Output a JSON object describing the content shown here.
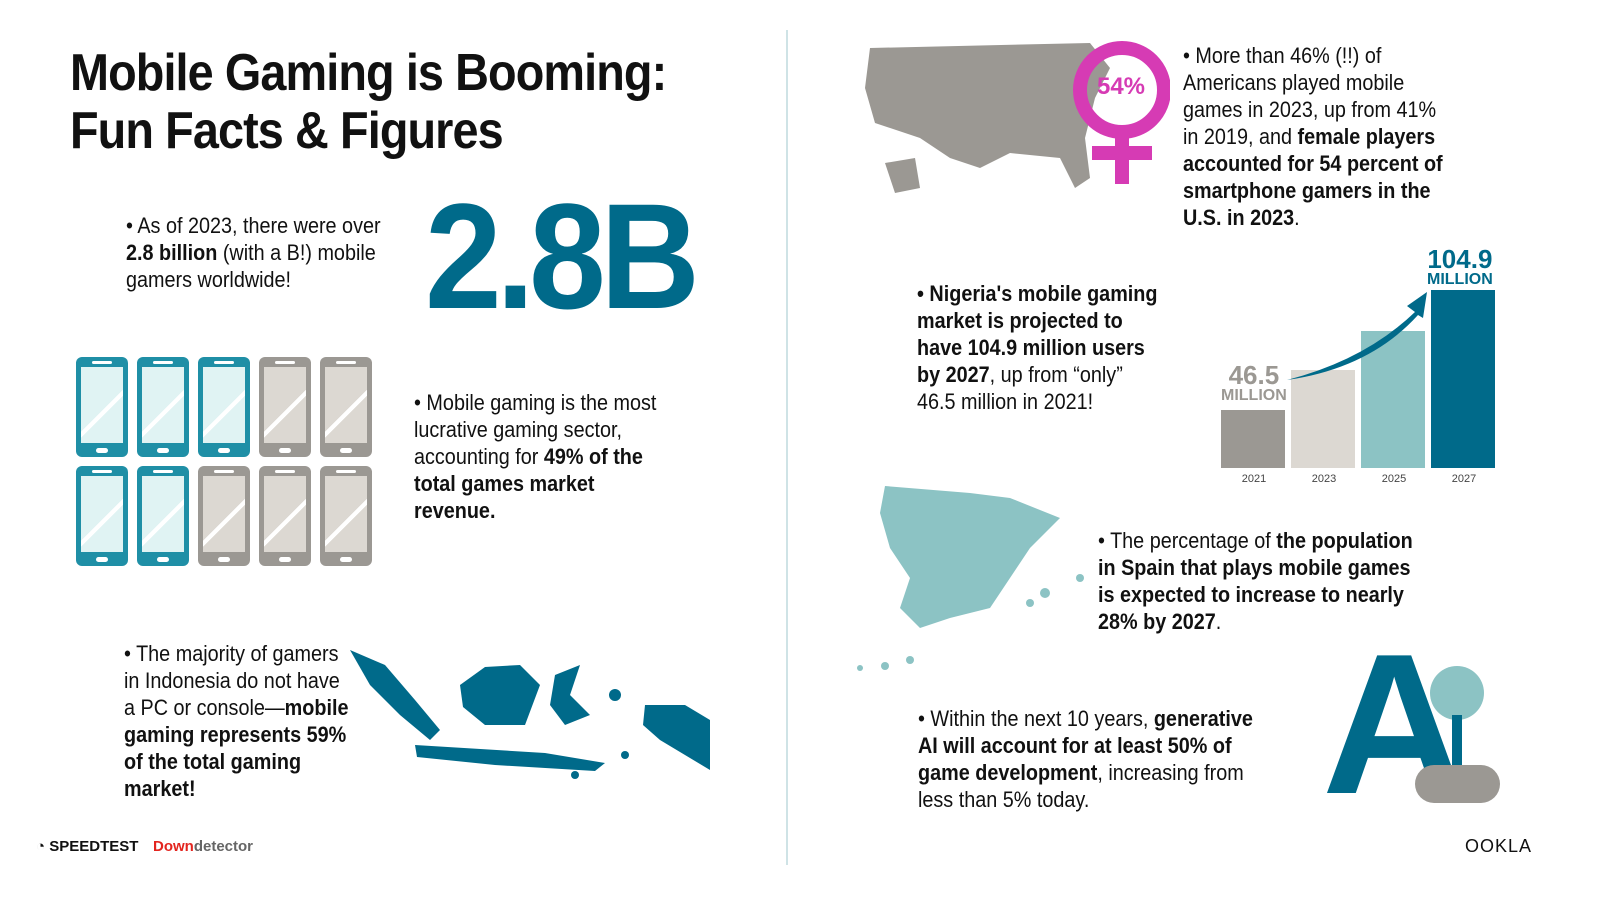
{
  "title_line1": "Mobile Gaming is Booming:",
  "title_line2": "Fun Facts & Figures",
  "big_number": "2.8B",
  "fact_gamers": {
    "pre": "• As of 2023, there were over ",
    "bold": "2.8 billion",
    "post": " (with a B!) mobile gamers worldwide!"
  },
  "phones": {
    "filled": 5,
    "total": 10,
    "colors": {
      "filled": "#1f8fa6",
      "empty": "#9b9893"
    }
  },
  "fact_revenue": {
    "pre": "• Mobile gaming is the most lucrative gaming sector, accounting for ",
    "bold": "49% of the total games market revenue."
  },
  "fact_indonesia": {
    "pre": "• The majority of gamers in Indonesia do not have a PC or console—",
    "bold": "mobile gaming represents 59% of the total gaming market!"
  },
  "female_pct": "54%",
  "fact_us": {
    "pre": "• More than 46% (!!) of Americans played mobile games in 2023, up from 41% in 2019, and ",
    "bold": "female players accounted for 54 percent of smartphone gamers in the U.S. in 2023",
    "post": "."
  },
  "fact_nigeria": {
    "bold1": "• Nigeria's mobile gaming market is projected to have 104.9 million users by 2027",
    "post": ", up from “only” 46.5 million in 2021!"
  },
  "chart_data": {
    "type": "bar",
    "categories": [
      "2021",
      "2023",
      "2025",
      "2027"
    ],
    "values": [
      46.5,
      66,
      85,
      104.9
    ],
    "labels": [
      {
        "value": "46.5",
        "unit": "MILLION"
      },
      null,
      null,
      {
        "value": "104.9",
        "unit": "MILLION"
      }
    ],
    "colors": [
      "#9b9893",
      "#dcd8d2",
      "#8cc3c4",
      "#006a8a"
    ],
    "grid": false
  },
  "fact_spain": {
    "pre": "• The percentage of ",
    "bold": "the population in Spain that plays mobile games is expected to increase to nearly 28% by 2027",
    "post": "."
  },
  "fact_ai": {
    "pre": "• Within the next 10 years, ",
    "bold": "generative AI will account for at least 50% of game development",
    "post": ", increasing from less than 5% today."
  },
  "ai_letter": "A",
  "footer": {
    "speedtest": "SPEEDTEST",
    "down": "Down",
    "detector": "detector",
    "ookla": "OOKLA"
  },
  "colors": {
    "teal": "#006a8a",
    "light_teal": "#8cc3c4",
    "gray": "#9b9893",
    "magenta": "#d63bb4"
  }
}
